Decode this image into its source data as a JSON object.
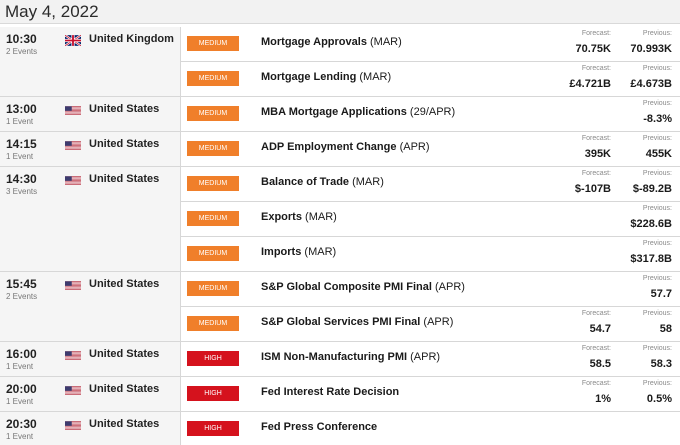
{
  "date": "May 4, 2022",
  "labels": {
    "forecast": "Forecast:",
    "previous": "Previous:"
  },
  "colors": {
    "medium": "#f07f2a",
    "high": "#d5121d"
  },
  "groups": [
    {
      "time": "10:30",
      "events_count": "2 Events",
      "flag": "uk-flag-icon",
      "country": "United Kingdom",
      "events": [
        {
          "impact": "MEDIUM",
          "level": "medium",
          "name": "Mortgage Approvals",
          "period": "(MAR)",
          "forecast": "70.75K",
          "previous": "70.993K"
        },
        {
          "impact": "MEDIUM",
          "level": "medium",
          "name": "Mortgage Lending",
          "period": "(MAR)",
          "forecast": "£4.721B",
          "previous": "£4.673B"
        }
      ]
    },
    {
      "time": "13:00",
      "events_count": "1 Event",
      "flag": "us-flag-icon",
      "country": "United States",
      "events": [
        {
          "impact": "MEDIUM",
          "level": "medium",
          "name": "MBA Mortgage Applications",
          "period": "(29/APR)",
          "forecast": "",
          "previous": "-8.3%"
        }
      ]
    },
    {
      "time": "14:15",
      "events_count": "1 Event",
      "flag": "us-flag-icon",
      "country": "United States",
      "events": [
        {
          "impact": "MEDIUM",
          "level": "medium",
          "name": "ADP Employment Change",
          "period": "(APR)",
          "forecast": "395K",
          "previous": "455K"
        }
      ]
    },
    {
      "time": "14:30",
      "events_count": "3 Events",
      "flag": "us-flag-icon",
      "country": "United States",
      "events": [
        {
          "impact": "MEDIUM",
          "level": "medium",
          "name": "Balance of Trade",
          "period": "(MAR)",
          "forecast": "$-107B",
          "previous": "$-89.2B"
        },
        {
          "impact": "MEDIUM",
          "level": "medium",
          "name": "Exports",
          "period": "(MAR)",
          "forecast": "",
          "previous": "$228.6B"
        },
        {
          "impact": "MEDIUM",
          "level": "medium",
          "name": "Imports",
          "period": "(MAR)",
          "forecast": "",
          "previous": "$317.8B"
        }
      ]
    },
    {
      "time": "15:45",
      "events_count": "2 Events",
      "flag": "us-flag-icon",
      "country": "United States",
      "events": [
        {
          "impact": "MEDIUM",
          "level": "medium",
          "name": "S&P Global Composite PMI Final",
          "period": "(APR)",
          "forecast": "",
          "previous": "57.7"
        },
        {
          "impact": "MEDIUM",
          "level": "medium",
          "name": "S&P Global Services PMI Final",
          "period": "(APR)",
          "forecast": "54.7",
          "previous": "58"
        }
      ]
    },
    {
      "time": "16:00",
      "events_count": "1 Event",
      "flag": "us-flag-icon",
      "country": "United States",
      "events": [
        {
          "impact": "HIGH",
          "level": "high",
          "name": "ISM Non-Manufacturing PMI",
          "period": "(APR)",
          "forecast": "58.5",
          "previous": "58.3"
        }
      ]
    },
    {
      "time": "20:00",
      "events_count": "1 Event",
      "flag": "us-flag-icon",
      "country": "United States",
      "events": [
        {
          "impact": "HIGH",
          "level": "high",
          "name": "Fed Interest Rate Decision",
          "period": "",
          "forecast": "1%",
          "previous": "0.5%"
        }
      ]
    },
    {
      "time": "20:30",
      "events_count": "1 Event",
      "flag": "us-flag-icon",
      "country": "United States",
      "events": [
        {
          "impact": "HIGH",
          "level": "high",
          "name": "Fed Press Conference",
          "period": "",
          "forecast": "",
          "previous": ""
        }
      ]
    }
  ]
}
